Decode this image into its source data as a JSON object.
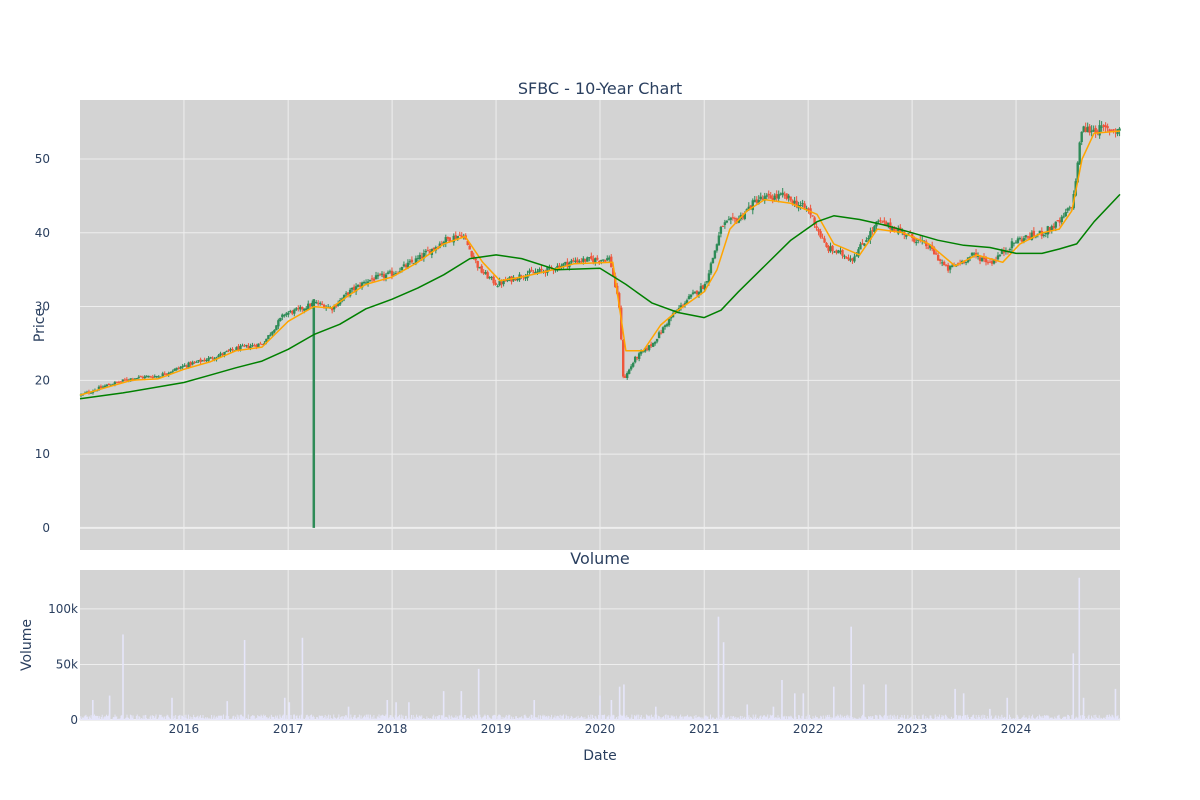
{
  "chart_data": [
    {
      "type": "candlestick",
      "title": "SFBC - 10-Year Chart",
      "ylabel": "Price",
      "ylim": [
        -3,
        58
      ],
      "xlim": [
        "2015-01-01",
        "2024-12-31"
      ],
      "y_ticks": [
        0,
        10,
        20,
        30,
        40,
        50
      ],
      "grid": true,
      "colors": {
        "up": "#2e8b57",
        "down": "#ef553b",
        "plot_bg": "#d3d3d3",
        "grid": "#eeeeee"
      },
      "close_path": [
        [
          "2015-01-01",
          18.0
        ],
        [
          "2015-04-01",
          19.3
        ],
        [
          "2015-07-01",
          20.3
        ],
        [
          "2015-10-01",
          20.6
        ],
        [
          "2016-01-01",
          22.0
        ],
        [
          "2016-04-01",
          23.0
        ],
        [
          "2016-07-01",
          24.3
        ],
        [
          "2016-10-01",
          25.0
        ],
        [
          "2016-12-15",
          29.0
        ],
        [
          "2017-02-01",
          29.5
        ],
        [
          "2017-04-01",
          30.5
        ],
        [
          "2017-06-01",
          29.8
        ],
        [
          "2017-08-01",
          32.0
        ],
        [
          "2017-10-01",
          33.5
        ],
        [
          "2018-01-01",
          34.5
        ],
        [
          "2018-04-01",
          36.5
        ],
        [
          "2018-07-01",
          39.0
        ],
        [
          "2018-09-01",
          39.8
        ],
        [
          "2018-11-01",
          35.0
        ],
        [
          "2019-01-01",
          33.0
        ],
        [
          "2019-04-01",
          34.3
        ],
        [
          "2019-07-01",
          35.0
        ],
        [
          "2019-10-01",
          36.2
        ],
        [
          "2020-02-01",
          36.5
        ],
        [
          "2020-03-05",
          30.0
        ],
        [
          "2020-03-20",
          20.0
        ],
        [
          "2020-05-01",
          23.0
        ],
        [
          "2020-07-01",
          25.0
        ],
        [
          "2020-09-01",
          28.5
        ],
        [
          "2020-11-01",
          31.0
        ],
        [
          "2021-01-01",
          33.0
        ],
        [
          "2021-03-01",
          41.0
        ],
        [
          "2021-05-01",
          42.0
        ],
        [
          "2021-07-01",
          44.5
        ],
        [
          "2021-10-01",
          45.0
        ],
        [
          "2022-01-01",
          43.0
        ],
        [
          "2022-03-01",
          38.0
        ],
        [
          "2022-06-01",
          36.5
        ],
        [
          "2022-09-01",
          41.5
        ],
        [
          "2022-12-01",
          40.0
        ],
        [
          "2023-03-01",
          38.0
        ],
        [
          "2023-05-01",
          35.0
        ],
        [
          "2023-08-01",
          37.0
        ],
        [
          "2023-10-01",
          36.0
        ],
        [
          "2024-01-01",
          39.0
        ],
        [
          "2024-04-01",
          40.0
        ],
        [
          "2024-06-01",
          41.5
        ],
        [
          "2024-07-15",
          44.0
        ],
        [
          "2024-08-15",
          54.0
        ],
        [
          "2024-10-01",
          54.0
        ],
        [
          "2024-12-31",
          54.0
        ]
      ],
      "outlier_candle": {
        "date": "2017-04-01",
        "open": 30.5,
        "close": 30.0,
        "high": 31.0,
        "low": 0
      },
      "series": [
        {
          "name": "",
          "color": "#ffa500",
          "type": "line",
          "points": [
            [
              "2015-01-01",
              18.0
            ],
            [
              "2015-04-01",
              19.0
            ],
            [
              "2015-07-01",
              20.0
            ],
            [
              "2015-10-01",
              20.2
            ],
            [
              "2016-01-01",
              21.5
            ],
            [
              "2016-04-01",
              22.5
            ],
            [
              "2016-07-01",
              24.0
            ],
            [
              "2016-10-01",
              24.5
            ],
            [
              "2017-01-01",
              28.0
            ],
            [
              "2017-04-01",
              30.0
            ],
            [
              "2017-06-01",
              29.8
            ],
            [
              "2017-08-01",
              31.5
            ],
            [
              "2017-10-01",
              33.0
            ],
            [
              "2018-01-01",
              34.0
            ],
            [
              "2018-04-01",
              36.0
            ],
            [
              "2018-07-01",
              38.5
            ],
            [
              "2018-09-15",
              39.5
            ],
            [
              "2018-11-15",
              36.0
            ],
            [
              "2019-01-15",
              33.5
            ],
            [
              "2019-04-01",
              34.0
            ],
            [
              "2019-07-01",
              34.8
            ],
            [
              "2019-10-01",
              35.8
            ],
            [
              "2020-02-15",
              36.0
            ],
            [
              "2020-04-01",
              24.0
            ],
            [
              "2020-06-01",
              24.0
            ],
            [
              "2020-08-01",
              27.5
            ],
            [
              "2020-10-01",
              29.5
            ],
            [
              "2021-01-01",
              32.0
            ],
            [
              "2021-02-15",
              35.0
            ],
            [
              "2021-04-01",
              40.5
            ],
            [
              "2021-06-01",
              43.0
            ],
            [
              "2021-08-01",
              44.5
            ],
            [
              "2021-11-01",
              44.0
            ],
            [
              "2022-02-01",
              42.5
            ],
            [
              "2022-04-01",
              38.5
            ],
            [
              "2022-07-01",
              37.0
            ],
            [
              "2022-09-01",
              40.5
            ],
            [
              "2022-12-01",
              40.0
            ],
            [
              "2023-03-01",
              38.5
            ],
            [
              "2023-06-01",
              35.5
            ],
            [
              "2023-08-15",
              37.0
            ],
            [
              "2023-11-15",
              36.0
            ],
            [
              "2024-01-15",
              38.5
            ],
            [
              "2024-04-01",
              40.0
            ],
            [
              "2024-06-01",
              40.5
            ],
            [
              "2024-07-15",
              43.0
            ],
            [
              "2024-08-20",
              50.0
            ],
            [
              "2024-10-01",
              53.5
            ],
            [
              "2024-12-31",
              53.8
            ]
          ]
        },
        {
          "name": "",
          "color": "#008000",
          "type": "line",
          "points": [
            [
              "2015-01-01",
              17.5
            ],
            [
              "2015-06-01",
              18.3
            ],
            [
              "2016-01-01",
              19.7
            ],
            [
              "2016-04-01",
              20.7
            ],
            [
              "2016-07-01",
              21.7
            ],
            [
              "2016-10-01",
              22.6
            ],
            [
              "2017-01-01",
              24.2
            ],
            [
              "2017-04-01",
              26.2
            ],
            [
              "2017-07-01",
              27.6
            ],
            [
              "2017-10-01",
              29.7
            ],
            [
              "2018-01-01",
              31.0
            ],
            [
              "2018-04-01",
              32.5
            ],
            [
              "2018-07-01",
              34.3
            ],
            [
              "2018-10-01",
              36.5
            ],
            [
              "2019-01-01",
              37.0
            ],
            [
              "2019-04-01",
              36.5
            ],
            [
              "2019-08-01",
              35.0
            ],
            [
              "2020-01-01",
              35.2
            ],
            [
              "2020-04-01",
              33.0
            ],
            [
              "2020-07-01",
              30.5
            ],
            [
              "2020-10-01",
              29.2
            ],
            [
              "2021-01-01",
              28.5
            ],
            [
              "2021-03-01",
              29.5
            ],
            [
              "2021-05-01",
              32.0
            ],
            [
              "2021-08-01",
              35.5
            ],
            [
              "2021-11-01",
              39.0
            ],
            [
              "2022-02-01",
              41.5
            ],
            [
              "2022-04-01",
              42.3
            ],
            [
              "2022-07-01",
              41.8
            ],
            [
              "2022-10-01",
              41.0
            ],
            [
              "2023-01-01",
              40.0
            ],
            [
              "2023-04-01",
              39.0
            ],
            [
              "2023-07-01",
              38.3
            ],
            [
              "2023-10-01",
              38.0
            ],
            [
              "2024-01-01",
              37.2
            ],
            [
              "2024-04-01",
              37.2
            ],
            [
              "2024-06-01",
              37.8
            ],
            [
              "2024-08-01",
              38.5
            ],
            [
              "2024-10-01",
              41.5
            ],
            [
              "2024-12-31",
              45.2
            ]
          ]
        }
      ]
    },
    {
      "type": "bar",
      "title": "Volume",
      "xlabel": "Date",
      "ylabel": "Volume",
      "ylim": [
        0,
        135000
      ],
      "y_ticks": [
        0,
        50000,
        100000
      ],
      "y_tick_labels": [
        "0",
        "50k",
        "100k"
      ],
      "x_ticks": [
        "2016",
        "2017",
        "2018",
        "2019",
        "2020",
        "2021",
        "2022",
        "2023",
        "2024"
      ],
      "grid": true,
      "colors": {
        "bar": "#e6e6fa",
        "plot_bg": "#d3d3d3",
        "grid": "#eeeeee"
      },
      "baseline_max": 5000,
      "spikes": [
        [
          "2015-02-15",
          18000
        ],
        [
          "2015-04-15",
          22000
        ],
        [
          "2015-06-01",
          77000
        ],
        [
          "2015-11-20",
          20000
        ],
        [
          "2016-06-01",
          17000
        ],
        [
          "2016-08-01",
          72000
        ],
        [
          "2016-12-20",
          20000
        ],
        [
          "2017-01-05",
          16000
        ],
        [
          "2017-02-20",
          74000
        ],
        [
          "2017-08-01",
          12000
        ],
        [
          "2017-12-15",
          18000
        ],
        [
          "2018-01-15",
          16000
        ],
        [
          "2018-03-01",
          16000
        ],
        [
          "2018-07-01",
          26000
        ],
        [
          "2018-09-01",
          26000
        ],
        [
          "2018-11-01",
          46000
        ],
        [
          "2019-05-15",
          18000
        ],
        [
          "2020-01-01",
          22000
        ],
        [
          "2020-02-10",
          18000
        ],
        [
          "2020-03-10",
          30000
        ],
        [
          "2020-03-25",
          32000
        ],
        [
          "2020-07-15",
          12000
        ],
        [
          "2021-02-20",
          93000
        ],
        [
          "2021-03-10",
          70000
        ],
        [
          "2021-06-01",
          14000
        ],
        [
          "2021-09-01",
          12000
        ],
        [
          "2021-10-01",
          36000
        ],
        [
          "2021-11-15",
          24000
        ],
        [
          "2021-12-15",
          24000
        ],
        [
          "2022-04-01",
          30000
        ],
        [
          "2022-06-01",
          84000
        ],
        [
          "2022-07-15",
          32000
        ],
        [
          "2022-10-01",
          32000
        ],
        [
          "2023-06-01",
          28000
        ],
        [
          "2023-07-01",
          24000
        ],
        [
          "2023-10-01",
          10000
        ],
        [
          "2023-12-01",
          20000
        ],
        [
          "2024-07-20",
          60000
        ],
        [
          "2024-08-10",
          128000
        ],
        [
          "2024-08-25",
          20000
        ],
        [
          "2024-12-15",
          28000
        ]
      ]
    }
  ]
}
